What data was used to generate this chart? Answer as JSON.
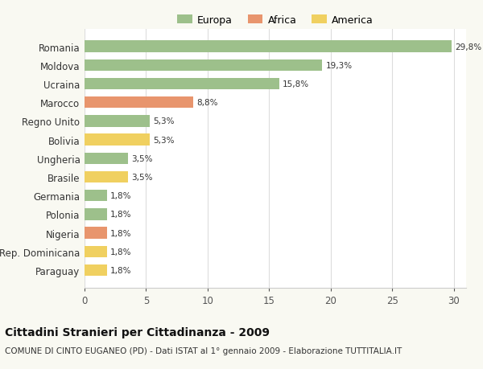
{
  "categories": [
    "Romania",
    "Moldova",
    "Ucraina",
    "Marocco",
    "Regno Unito",
    "Bolivia",
    "Ungheria",
    "Brasile",
    "Germania",
    "Polonia",
    "Nigeria",
    "Rep. Dominicana",
    "Paraguay"
  ],
  "values": [
    29.8,
    19.3,
    15.8,
    8.8,
    5.3,
    5.3,
    3.5,
    3.5,
    1.8,
    1.8,
    1.8,
    1.8,
    1.8
  ],
  "labels": [
    "29,8%",
    "19,3%",
    "15,8%",
    "8,8%",
    "5,3%",
    "5,3%",
    "3,5%",
    "3,5%",
    "1,8%",
    "1,8%",
    "1,8%",
    "1,8%",
    "1,8%"
  ],
  "continents": [
    "Europa",
    "Europa",
    "Europa",
    "Africa",
    "Europa",
    "America",
    "Europa",
    "America",
    "Europa",
    "Europa",
    "Africa",
    "America",
    "America"
  ],
  "colors": {
    "Europa": "#9dc08b",
    "Africa": "#e8956d",
    "America": "#f0d060"
  },
  "legend": [
    {
      "label": "Europa",
      "color": "#9dc08b"
    },
    {
      "label": "Africa",
      "color": "#e8956d"
    },
    {
      "label": "America",
      "color": "#f0d060"
    }
  ],
  "xlim": [
    0,
    31
  ],
  "xticks": [
    0,
    5,
    10,
    15,
    20,
    25,
    30
  ],
  "title": "Cittadini Stranieri per Cittadinanza - 2009",
  "subtitle": "COMUNE DI CINTO EUGANEO (PD) - Dati ISTAT al 1° gennaio 2009 - Elaborazione TUTTITALIA.IT",
  "title_fontsize": 10,
  "subtitle_fontsize": 7.5,
  "background_color": "#f9f9f2",
  "plot_bg_color": "#ffffff"
}
